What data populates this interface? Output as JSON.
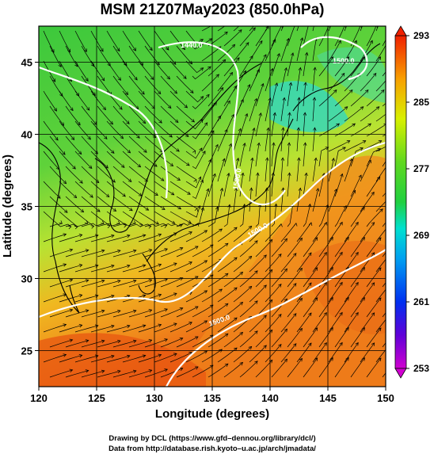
{
  "title": "MSM 21Z07May2023 (850.0hPa)",
  "xlabel": "Longitude (degrees)",
  "ylabel": "Latitude  (degrees)",
  "credits": [
    "Drawing by DCL (https://www.gfd–dennou.org/library/dcl/)",
    "Data from http://database.rish.kyoto–u.ac.jp/arch/jmadata/"
  ],
  "map": {
    "lon_range": [
      120,
      150
    ],
    "lat_range": [
      22.5,
      47.5
    ],
    "lon_ticks": [
      120,
      125,
      130,
      135,
      140,
      145,
      150
    ],
    "lat_ticks": [
      25,
      30,
      35,
      40,
      45
    ],
    "grid_lons": [
      125,
      130,
      135,
      140,
      145
    ],
    "grid_lats": [
      25,
      30,
      35,
      40,
      45
    ]
  },
  "colorbar": {
    "ticks": [
      253,
      261,
      269,
      277,
      285,
      293
    ],
    "min": 253,
    "max": 293
  },
  "contour_labels": [
    "1440.0",
    "1500.0",
    "1500.0",
    "1500.0",
    "1500.0"
  ],
  "colors": {
    "warm": "#e84a10",
    "orange": "#f28a1c",
    "yellow_green": "#a6e03a",
    "green": "#3cc83c",
    "cyan": "#30d8d0",
    "contour": "#ffffff",
    "coast": "#000000"
  }
}
